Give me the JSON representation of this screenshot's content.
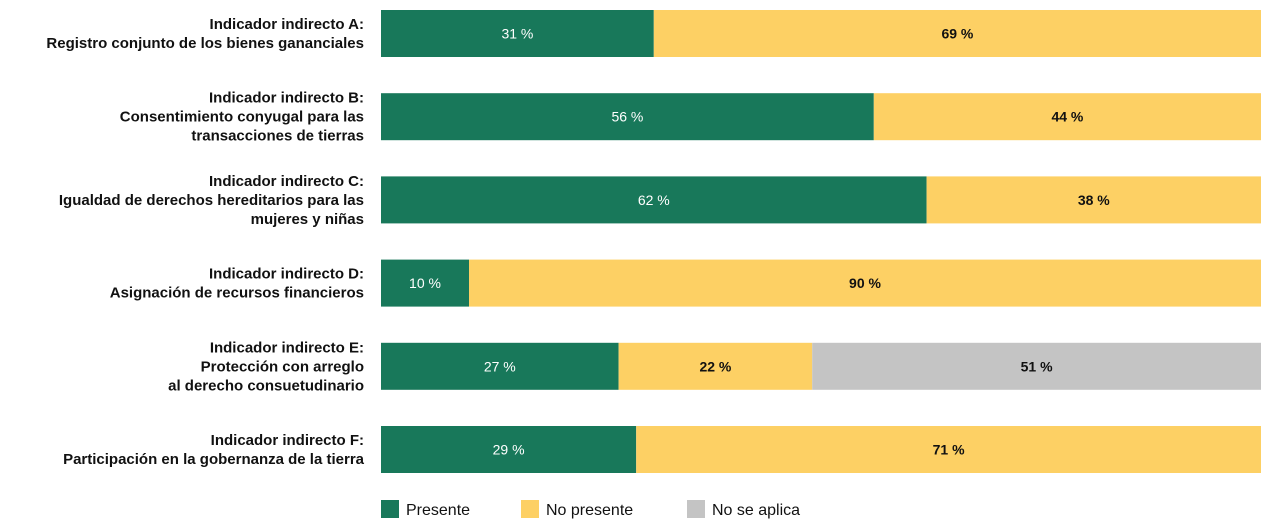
{
  "chart_data": {
    "type": "bar",
    "orientation": "horizontal",
    "stacked": true,
    "categories": [
      [
        "Indicador indirecto A:",
        "Registro conjunto de los bienes gananciales"
      ],
      [
        "Indicador indirecto B:",
        "Consentimiento conyugal para las",
        "transacciones de tierras"
      ],
      [
        "Indicador indirecto C:",
        "Igualdad de derechos hereditarios para las",
        "mujeres y niñas"
      ],
      [
        "Indicador indirecto D:",
        "Asignación de recursos financieros"
      ],
      [
        "Indicador indirecto E:",
        "Protección con arreglo",
        "al derecho consuetudinario"
      ],
      [
        "Indicador indirecto F:",
        "Participación en la gobernanza de la tierra"
      ]
    ],
    "series": [
      {
        "name": "Presente",
        "color": "#18785a",
        "text_color": "#ffffff",
        "values": [
          31,
          56,
          62,
          10,
          27,
          29
        ]
      },
      {
        "name": "No presente",
        "color": "#fdd064",
        "text_color": "#111111",
        "values": [
          69,
          44,
          38,
          90,
          22,
          71
        ]
      },
      {
        "name": "No se aplica",
        "color": "#c4c4c4",
        "text_color": "#111111",
        "values": [
          0,
          0,
          0,
          0,
          51,
          0
        ]
      }
    ],
    "value_suffix": " %",
    "xlim": [
      0,
      100
    ],
    "grid": false,
    "legend_position": "bottom"
  }
}
